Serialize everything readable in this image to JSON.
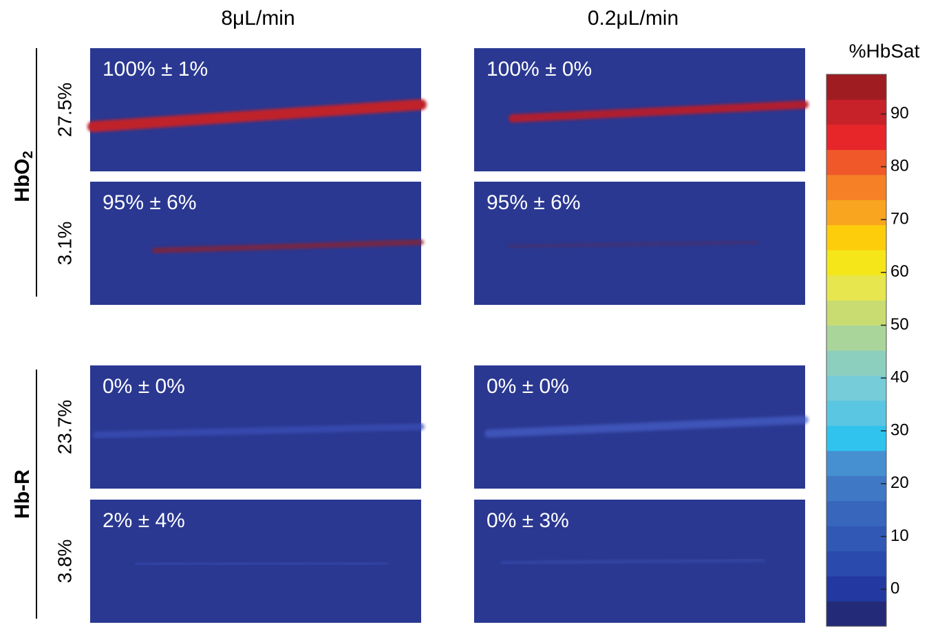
{
  "columns": [
    "8μL/min",
    "0.2μL/min"
  ],
  "groups": [
    {
      "label": "HbO",
      "label_sub": "2",
      "rows": [
        {
          "label": "27.5%",
          "panels": [
            "100% ± 1%",
            "100% ± 0%"
          ]
        },
        {
          "label": "3.1%",
          "panels": [
            "95% ± 6%",
            "95% ± 6%"
          ]
        }
      ]
    },
    {
      "label": "Hb-R",
      "rows": [
        {
          "label": "23.7%",
          "panels": [
            "0% ± 0%",
            "0% ± 0%"
          ]
        },
        {
          "label": "3.8%",
          "panels": [
            "2% ± 4%",
            "0% ± 3%"
          ]
        }
      ]
    }
  ],
  "colorbar": {
    "title": "%HbSat",
    "lim": [
      -7,
      97.5
    ],
    "ticks": [
      0,
      10,
      20,
      30,
      40,
      50,
      60,
      70,
      80,
      90
    ],
    "colors": [
      "#232b78",
      "#2338a0",
      "#2a4aae",
      "#3158b4",
      "#3766bc",
      "#3f78c4",
      "#4690d2",
      "#2fc3ee",
      "#5ac6e2",
      "#76ccd8",
      "#8dcfbf",
      "#aad59a",
      "#c9dc72",
      "#e8e64e",
      "#f5e61a",
      "#fdcd0b",
      "#f9a51f",
      "#f58026",
      "#f0582a",
      "#e7262a",
      "#c72129",
      "#9f1d21"
    ]
  }
}
